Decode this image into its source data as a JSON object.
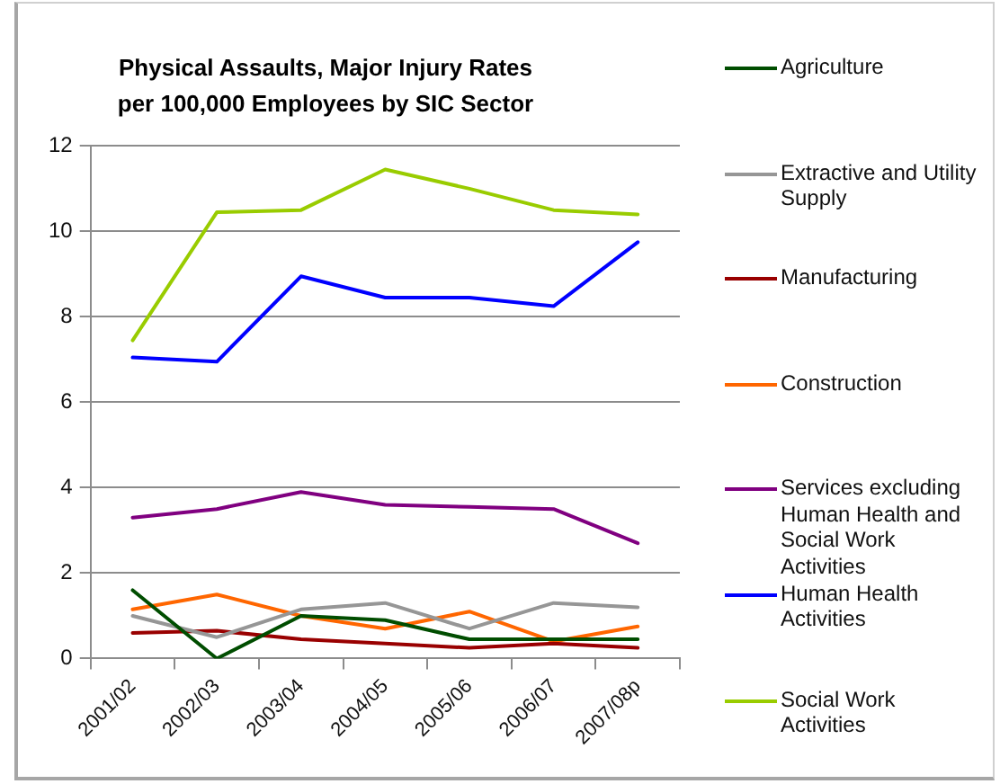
{
  "chart_data": {
    "type": "line",
    "title": "Physical Assaults, Major Injury Rates per 100,000 Employees by SIC Sector",
    "categories": [
      "2001/02",
      "2002/03",
      "2003/04",
      "2004/05",
      "2005/06",
      "2006/07",
      "2007/08p"
    ],
    "series": [
      {
        "name": "Agriculture",
        "color": "#004d00",
        "values": [
          1.6,
          0,
          1.0,
          0.9,
          0.45,
          0.45,
          0.45
        ]
      },
      {
        "name": "Extractive and Utility Supply",
        "color": "#969696",
        "values": [
          1.0,
          0.5,
          1.15,
          1.3,
          0.7,
          1.3,
          1.2
        ]
      },
      {
        "name": "Manufacturing",
        "color": "#990000",
        "values": [
          0.6,
          0.65,
          0.45,
          0.35,
          0.25,
          0.35,
          0.25
        ]
      },
      {
        "name": "Construction",
        "color": "#ff6600",
        "values": [
          1.15,
          1.5,
          1.0,
          0.7,
          1.1,
          0.4,
          0.75
        ]
      },
      {
        "name": "Services excluding Human Health and Social Work Activities",
        "color": "#800080",
        "values": [
          3.3,
          3.5,
          3.9,
          3.6,
          3.55,
          3.5,
          2.7
        ]
      },
      {
        "name": "Human Health Activities",
        "color": "#0000ff",
        "values": [
          7.05,
          6.95,
          8.95,
          8.45,
          8.45,
          8.25,
          9.75
        ]
      },
      {
        "name": "Social Work Activities",
        "color": "#99cc00",
        "values": [
          7.45,
          10.45,
          10.5,
          11.45,
          11.0,
          10.5,
          10.4
        ]
      }
    ],
    "ylim": [
      0,
      12
    ],
    "yticks": [
      0,
      2,
      4,
      6,
      8,
      10,
      12
    ],
    "grid": "y",
    "legend": "right",
    "marker": "none",
    "line_style": "solid"
  }
}
